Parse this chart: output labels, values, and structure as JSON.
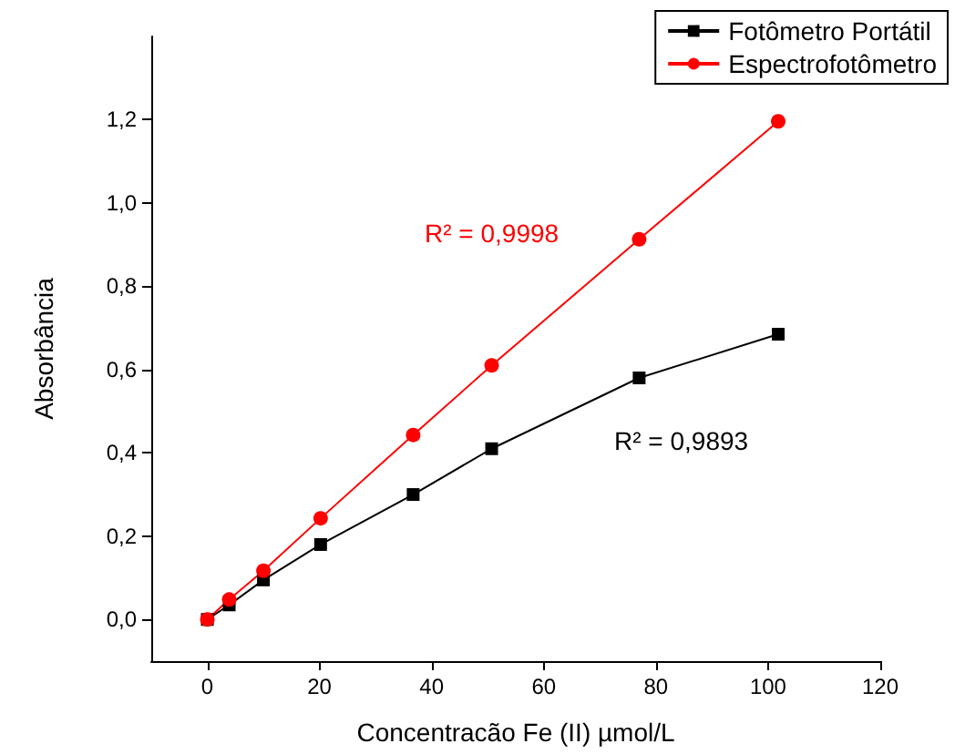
{
  "chart_data": {
    "type": "line",
    "xlabel": "Concentracão Fe (II) µmol/L",
    "ylabel": "Absorbância",
    "xlim": [
      -10,
      120
    ],
    "xticks": [
      0,
      20,
      40,
      60,
      80,
      100,
      120
    ],
    "ylim": [
      -0.1,
      1.4
    ],
    "yticks": [
      {
        "value": 0,
        "label": "0,0"
      },
      {
        "value": 0.2,
        "label": "0,2"
      },
      {
        "value": 0.4,
        "label": "0,4"
      },
      {
        "value": 0.6,
        "label": "0,6"
      },
      {
        "value": 0.8,
        "label": "0,8"
      },
      {
        "value": 1,
        "label": "1,0"
      },
      {
        "value": 1.2,
        "label": "1,2"
      }
    ],
    "grid": false,
    "legend": "top right",
    "line_style": "solid",
    "series": [
      {
        "name": "Fotômetro Portátil",
        "color": "#000000",
        "marker": "square",
        "x": [
          0,
          3.9,
          10,
          20.2,
          36.7,
          50.7,
          77,
          101.8
        ],
        "values": [
          0,
          0.035,
          0.095,
          0.18,
          0.3,
          0.41,
          0.58,
          0.685
        ]
      },
      {
        "name": "Espectrofotômetro",
        "color": "#ff0000",
        "marker": "circle",
        "x": [
          0,
          3.9,
          10,
          20.2,
          36.7,
          50.7,
          77,
          101.8
        ],
        "values": [
          0,
          0.048,
          0.117,
          0.243,
          0.443,
          0.61,
          0.913,
          1.196
        ]
      }
    ],
    "annotations": [
      "R² = 0,9893",
      "R² = 0,9998"
    ]
  }
}
